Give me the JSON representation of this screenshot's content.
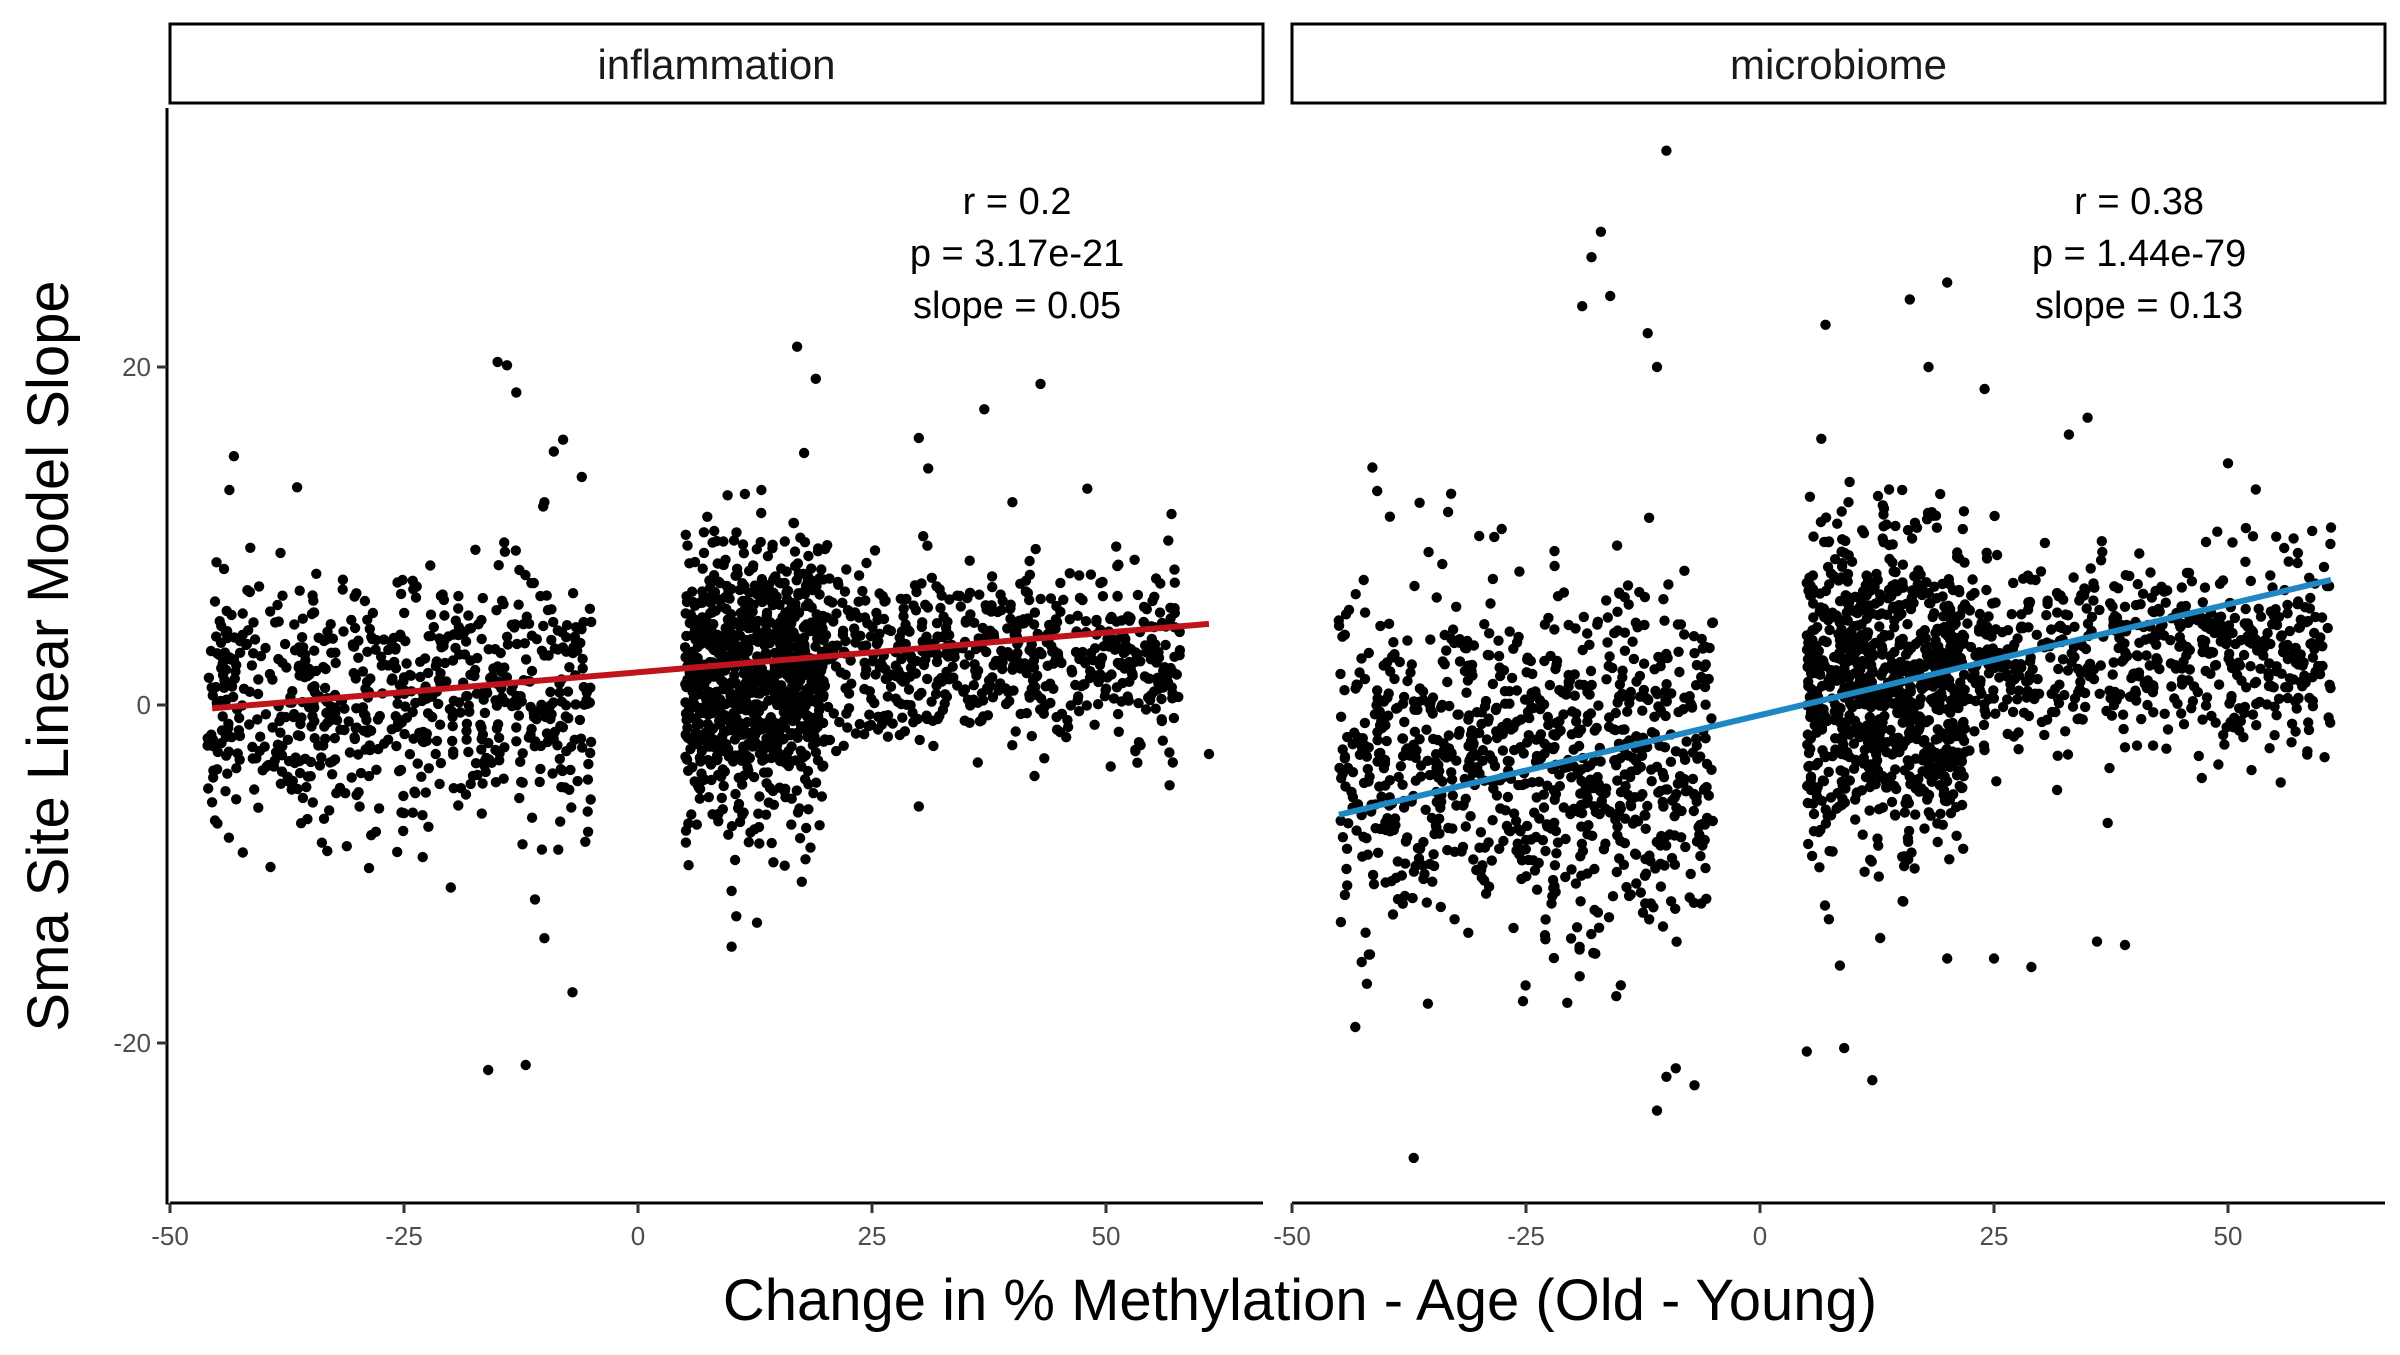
{
  "chart_data": {
    "type": "scatter",
    "facet_layout": "two panels side by side, shared y axis",
    "xlabel": "Change in % Methylation - Age (Old - Young)",
    "ylabel": "Sma Site Linear Model Slope",
    "xlim": [
      -50,
      62
    ],
    "ylim": [
      -30,
      35
    ],
    "x_ticks": [
      -50,
      -25,
      0,
      25,
      50
    ],
    "x_tick_labels": [
      "-50",
      "-25",
      "0",
      "25",
      "50"
    ],
    "y_ticks": [
      -20,
      0,
      20
    ],
    "y_tick_labels": [
      "-20",
      "0",
      "20"
    ],
    "grid": false,
    "point_color": "#000000",
    "panels": [
      {
        "strip": "inflammation",
        "annotation": [
          "r = 0.2",
          "p = 3.17e-21",
          "slope = 0.05"
        ],
        "fit": {
          "x": [
            -45.5,
            61
          ],
          "y": [
            -0.2,
            4.8
          ],
          "color": "#c0141c"
        },
        "clusters": [
          {
            "x_range": [
              -46,
              -5
            ],
            "center_y": 0.5,
            "spread_y": 4.0,
            "n": 700,
            "seed": 11
          },
          {
            "x_range": [
              5,
              20
            ],
            "center_y": 1.5,
            "spread_y": 4.2,
            "n": 900,
            "seed": 12
          },
          {
            "x_range": [
              20,
              58
            ],
            "center_y": 2.8,
            "spread_y": 2.6,
            "n": 600,
            "seed": 13
          }
        ],
        "outliers": [
          [
            -15,
            20.3
          ],
          [
            -14,
            20.1
          ],
          [
            -13,
            18.5
          ],
          [
            -10,
            12
          ],
          [
            -9,
            15
          ],
          [
            -8,
            15.7
          ],
          [
            -6,
            13.5
          ],
          [
            -45,
            0.1
          ],
          [
            -44,
            -3
          ],
          [
            -41,
            -5
          ],
          [
            -37,
            -5
          ],
          [
            -38,
            2.5
          ],
          [
            -36,
            2
          ],
          [
            -28,
            -7.5
          ],
          [
            -23,
            -9
          ],
          [
            -20,
            -10.8
          ],
          [
            -16,
            -21.6
          ],
          [
            -12,
            -21.3
          ],
          [
            -11,
            -11.5
          ],
          [
            -10,
            -13.8
          ],
          [
            -7,
            -17
          ],
          [
            10,
            -11
          ],
          [
            10.5,
            -12.5
          ],
          [
            10,
            -14.3
          ],
          [
            17,
            21.2
          ],
          [
            19,
            19.3
          ],
          [
            43,
            19
          ],
          [
            37,
            17.5
          ],
          [
            30,
            15.8
          ],
          [
            31,
            14
          ],
          [
            40,
            12
          ],
          [
            48,
            12.8
          ],
          [
            57,
            11.3
          ],
          [
            61,
            -2.9
          ],
          [
            30,
            -6
          ],
          [
            56,
            1.5
          ]
        ]
      },
      {
        "strip": "microbiome",
        "annotation": [
          "r = 0.38",
          "p = 1.44e-79",
          "slope = 0.13"
        ],
        "fit": {
          "x": [
            -45,
            61
          ],
          "y": [
            -6.5,
            7.4
          ],
          "color": "#1f88c4"
        },
        "clusters": [
          {
            "x_range": [
              -45,
              -5
            ],
            "center_y": -3.0,
            "spread_y": 5.2,
            "n": 900,
            "seed": 21
          },
          {
            "x_range": [
              5,
              22
            ],
            "center_y": 1.0,
            "spread_y": 4.6,
            "n": 900,
            "seed": 22
          },
          {
            "x_range": [
              22,
              61
            ],
            "center_y": 3.2,
            "spread_y": 2.8,
            "n": 600,
            "seed": 23
          }
        ],
        "outliers": [
          [
            -10,
            32.8
          ],
          [
            -17,
            28
          ],
          [
            -18,
            26.5
          ],
          [
            -16,
            24.2
          ],
          [
            -19,
            23.6
          ],
          [
            -12,
            22
          ],
          [
            -11,
            20
          ],
          [
            -37,
            -26.8
          ],
          [
            -42,
            -16.5
          ],
          [
            -44,
            -7
          ],
          [
            -45,
            5
          ],
          [
            -40,
            -10.5
          ],
          [
            -38,
            -1
          ],
          [
            -33,
            12.5
          ],
          [
            -30,
            10
          ],
          [
            -11,
            -24
          ],
          [
            -10,
            -22
          ],
          [
            -7,
            -22.5
          ],
          [
            -9,
            -21.5
          ],
          [
            5,
            -20.5
          ],
          [
            9,
            -20.3
          ],
          [
            12,
            -22.2
          ],
          [
            7,
            22.5
          ],
          [
            16,
            24
          ],
          [
            20,
            25
          ],
          [
            18,
            20
          ],
          [
            24,
            18.7
          ],
          [
            35,
            17
          ],
          [
            33,
            16
          ],
          [
            50,
            14.3
          ],
          [
            59,
            10.3
          ],
          [
            61,
            10.5
          ],
          [
            57,
            1.5
          ],
          [
            36,
            -14
          ],
          [
            39,
            -14.2
          ],
          [
            20,
            -15
          ],
          [
            25,
            -15
          ],
          [
            29,
            -15.5
          ],
          [
            39,
            -2.5
          ],
          [
            42,
            -2.4
          ],
          [
            45,
            -0.5
          ]
        ]
      }
    ]
  }
}
